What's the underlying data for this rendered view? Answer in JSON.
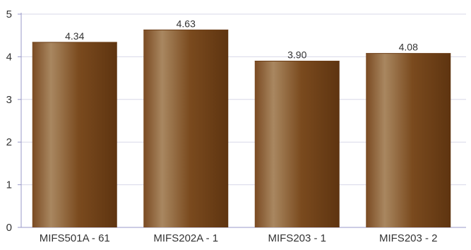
{
  "chart_data": {
    "type": "bar",
    "categories": [
      "MIFS501A - 61",
      "MIFS202A - 1",
      "MIFS203 - 1",
      "MIFS203 - 2"
    ],
    "values": [
      4.34,
      4.63,
      3.9,
      4.08
    ],
    "data_labels": [
      "4.34",
      "4.63",
      "3.90",
      "4.08"
    ],
    "title": "",
    "xlabel": "",
    "ylabel": "",
    "ylim": [
      0,
      5
    ],
    "yticks": [
      "0",
      "1",
      "2",
      "3",
      "4",
      "5"
    ],
    "grid": true,
    "legend": "none",
    "colors": {
      "bar_dark": "#6b3c14",
      "bar_mid": "#8a5a2e",
      "bar_light": "#a98760",
      "axis": "#9a9ac8",
      "grid": "#d8d8e8"
    }
  }
}
